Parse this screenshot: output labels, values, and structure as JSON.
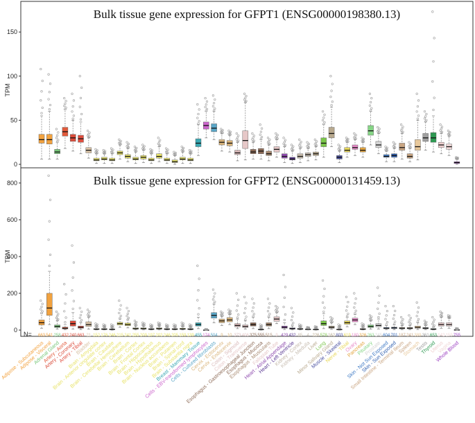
{
  "chart_data": [
    {
      "type": "box",
      "title": "Bulk tissue gene expression for GFPT1 (ENSG00000198380.13)",
      "ylabel": "TPM",
      "ylim": [
        0,
        180
      ],
      "yticks": [
        0,
        50,
        100,
        150
      ],
      "medians": [
        28,
        28,
        14,
        37,
        30,
        29,
        16,
        5,
        6,
        5,
        13,
        9,
        6,
        8,
        5,
        9,
        5,
        3,
        6,
        5,
        24,
        44,
        41,
        25,
        24,
        13,
        27,
        14,
        15,
        12,
        17,
        9,
        6,
        9,
        11,
        12,
        24,
        35,
        8,
        16,
        19,
        16,
        38,
        22,
        9,
        10,
        19,
        9,
        20,
        30,
        30,
        22,
        20,
        2
      ],
      "q1": [
        24,
        23,
        12,
        32,
        26,
        25,
        13,
        4,
        5,
        4,
        11,
        7,
        5,
        6,
        4,
        7,
        4,
        2,
        5,
        4,
        20,
        40,
        37,
        22,
        21,
        11,
        18,
        12,
        12,
        10,
        14,
        7,
        5,
        7,
        9,
        10,
        20,
        30,
        6,
        14,
        17,
        14,
        33,
        19,
        8,
        8,
        16,
        7,
        16,
        26,
        25,
        19,
        17,
        1
      ],
      "q3": [
        34,
        34,
        17,
        42,
        34,
        33,
        19,
        7,
        8,
        7,
        15,
        11,
        8,
        10,
        7,
        12,
        7,
        5,
        8,
        7,
        29,
        48,
        46,
        28,
        27,
        16,
        38,
        17,
        18,
        15,
        20,
        12,
        8,
        12,
        13,
        14,
        30,
        42,
        10,
        19,
        22,
        19,
        44,
        26,
        11,
        12,
        24,
        12,
        28,
        35,
        36,
        25,
        23,
        3
      ],
      "wlo": [
        6,
        6,
        6,
        18,
        15,
        12,
        7,
        1,
        1,
        1,
        6,
        3,
        1,
        2,
        1,
        3,
        1,
        0,
        1,
        1,
        10,
        30,
        28,
        15,
        14,
        4,
        5,
        6,
        6,
        4,
        8,
        2,
        1,
        2,
        4,
        5,
        8,
        20,
        2,
        8,
        10,
        8,
        22,
        12,
        3,
        3,
        6,
        3,
        5,
        16,
        14,
        12,
        10,
        0
      ],
      "whi": [
        55,
        60,
        25,
        62,
        50,
        48,
        30,
        12,
        12,
        12,
        22,
        18,
        14,
        16,
        12,
        20,
        12,
        10,
        14,
        12,
        45,
        60,
        60,
        35,
        33,
        25,
        70,
        25,
        28,
        22,
        28,
        20,
        15,
        18,
        18,
        20,
        45,
        65,
        15,
        25,
        28,
        25,
        60,
        35,
        15,
        18,
        35,
        18,
        50,
        48,
        55,
        35,
        32,
        6
      ],
      "outlier_max": [
        108,
        102,
        40,
        75,
        80,
        100,
        38,
        17,
        16,
        18,
        28,
        25,
        20,
        22,
        17,
        30,
        18,
        14,
        20,
        16,
        68,
        75,
        78,
        40,
        38,
        35,
        80,
        35,
        45,
        30,
        35,
        30,
        22,
        28,
        25,
        28,
        60,
        100,
        22,
        30,
        35,
        30,
        80,
        42,
        20,
        25,
        45,
        25,
        80,
        60,
        173,
        45,
        38,
        8
      ],
      "colors": [
        "#F2A23F",
        "#F2A23F",
        "#78C77A",
        "#E25A3B",
        "#D94B3A",
        "#E04E3E",
        "#D9C3A6",
        "#E8E36A",
        "#E8E36A",
        "#E8E36A",
        "#E8E36A",
        "#E8E36A",
        "#E8E36A",
        "#E8E36A",
        "#E8E36A",
        "#E8E36A",
        "#E8E36A",
        "#E8E36A",
        "#E8E36A",
        "#E8E36A",
        "#39A8B3",
        "#CC66CC",
        "#5AA6C7",
        "#D9B47A",
        "#D9B47A",
        "#D9B9B9",
        "#E6C8C8",
        "#8C6A56",
        "#8C6A56",
        "#A88A70",
        "#E6C8C8",
        "#8E4BAE",
        "#5B3A93",
        "#C4B8A8",
        "#C8BEB2",
        "#B8A98E",
        "#7CC64B",
        "#B8A98E",
        "#4A50A0",
        "#E8D85A",
        "#E889C8",
        "#E3A43E",
        "#86D686",
        "#D5D5D5",
        "#3C78C4",
        "#3060B0",
        "#C9A582",
        "#C9A582",
        "#E8C89A",
        "#A0A0A0",
        "#2E9A52",
        "#F0D0D0",
        "#F0D8D8",
        "#9B3FC0"
      ]
    },
    {
      "type": "box",
      "title": "Bulk tissue gene expression for GFPT2 (ENSG00000131459.13)",
      "ylabel": "TPM",
      "ylim": [
        0,
        860
      ],
      "yticks": [
        0,
        200,
        400,
        600,
        800
      ],
      "n_prefix": "N=",
      "counts": [
        "663",
        "541",
        "258",
        "432",
        "240",
        "663",
        "21",
        "152",
        "176",
        "246",
        "215",
        "241",
        "255",
        "209",
        "197",
        "202",
        "246",
        "205",
        "159",
        "139",
        "455",
        "174",
        "504",
        "9",
        "10",
        "373",
        "406",
        "375",
        "555",
        "515",
        "9",
        "429",
        "432",
        "85",
        "4",
        "226",
        "578",
        "162",
        "803",
        "619",
        "180",
        "326",
        "263",
        "245",
        "604",
        "701",
        "187",
        "241",
        "389",
        "361",
        "653",
        "142",
        "159",
        "755"
      ],
      "tissues": [
        "Adipose - Subcutaneous",
        "Adipose - Visceral",
        "Adrenal Gland",
        "Artery - Aorta",
        "Artery - Coronary",
        "Artery - Tibial",
        "Bladder",
        "Brain - Amygdala",
        "Brain - Anterior cingulate cortex",
        "Brain - Caudate",
        "Brain - Cerebellar Hemisphere",
        "Brain - Cerebellum",
        "Brain - Cortex",
        "Brain - Frontal Cortex",
        "Brain - Hippocampus",
        "Brain - Hypothalamus",
        "Brain - Nucleus accumbens",
        "Brain - Putamen",
        "Brain - Spinal cord",
        "Brain - Substantia nigra",
        "Breast - Mammary Tissue",
        "Cells - EBV-transformed lymphocytes",
        "Cells - Cultured fibroblasts",
        "Cervix - Ectocervix",
        "Cervix - Endocervix",
        "Colon - Sigmoid",
        "Colon - Transverse",
        "Esophagus - Gastroesophageal Junction",
        "Esophagus - Mucosa",
        "Esophagus - Muscularis",
        "Fallopian Tube",
        "Heart - Atrial Appendage",
        "Heart - Left Ventricle",
        "Kidney - Cortex",
        "Kidney - Medulla",
        "Liver",
        "Lung",
        "Minor Salivary Gland",
        "Muscle - Skeletal",
        "Nerve - Tibial",
        "Ovary",
        "Pancreas",
        "Pituitary",
        "Prostate",
        "Skin - Not Sun Exposed",
        "Skin - Sun Exposed",
        "Small Intestine - Terminal Ileum",
        "Spleen",
        "Stomach",
        "Testis",
        "Thyroid",
        "Uterus",
        "Vagina",
        "Whole Blood"
      ],
      "medians": [
        40,
        120,
        20,
        10,
        35,
        15,
        30,
        5,
        5,
        4,
        35,
        30,
        8,
        8,
        5,
        8,
        5,
        5,
        6,
        5,
        30,
        0,
        80,
        50,
        55,
        25,
        20,
        30,
        3,
        30,
        60,
        15,
        8,
        6,
        4,
        3,
        35,
        15,
        3,
        40,
        55,
        5,
        20,
        25,
        10,
        12,
        10,
        10,
        15,
        10,
        5,
        30,
        30,
        1
      ],
      "q1": [
        28,
        80,
        14,
        6,
        22,
        10,
        20,
        3,
        3,
        2,
        28,
        24,
        5,
        5,
        3,
        5,
        3,
        3,
        4,
        3,
        22,
        0,
        65,
        40,
        45,
        18,
        14,
        22,
        2,
        22,
        48,
        10,
        5,
        4,
        3,
        2,
        25,
        10,
        2,
        32,
        45,
        3,
        14,
        18,
        7,
        8,
        7,
        7,
        10,
        7,
        3,
        22,
        22,
        0
      ],
      "q3": [
        55,
        200,
        28,
        16,
        50,
        22,
        45,
        8,
        8,
        6,
        42,
        38,
        12,
        12,
        8,
        12,
        8,
        8,
        10,
        8,
        40,
        1,
        95,
        60,
        68,
        35,
        28,
        40,
        5,
        40,
        72,
        22,
        12,
        9,
        6,
        5,
        50,
        22,
        5,
        50,
        65,
        8,
        28,
        35,
        14,
        16,
        14,
        14,
        22,
        14,
        8,
        40,
        40,
        2
      ],
      "wlo": [
        10,
        30,
        5,
        2,
        5,
        3,
        5,
        1,
        1,
        0,
        15,
        12,
        1,
        1,
        1,
        1,
        1,
        1,
        1,
        1,
        8,
        0,
        40,
        25,
        30,
        8,
        5,
        8,
        0,
        8,
        35,
        3,
        1,
        1,
        1,
        0,
        8,
        4,
        0,
        18,
        30,
        1,
        5,
        6,
        2,
        2,
        2,
        2,
        3,
        2,
        1,
        10,
        10,
        0
      ],
      "whi": [
        90,
        320,
        50,
        30,
        95,
        40,
        70,
        15,
        15,
        12,
        60,
        55,
        22,
        22,
        15,
        22,
        15,
        15,
        18,
        15,
        70,
        2,
        140,
        75,
        85,
        60,
        50,
        70,
        9,
        70,
        95,
        40,
        22,
        15,
        10,
        10,
        90,
        40,
        9,
        70,
        85,
        15,
        50,
        60,
        25,
        28,
        25,
        25,
        40,
        25,
        15,
        70,
        65,
        4
      ],
      "outlier_max": [
        160,
        840,
        100,
        250,
        460,
        120,
        110,
        35,
        30,
        30,
        160,
        120,
        50,
        40,
        30,
        40,
        30,
        30,
        40,
        30,
        350,
        5,
        220,
        100,
        110,
        200,
        180,
        170,
        30,
        170,
        130,
        300,
        120,
        30,
        15,
        20,
        270,
        70,
        30,
        180,
        200,
        35,
        80,
        230,
        130,
        130,
        70,
        80,
        150,
        50,
        70,
        100,
        80,
        10
      ],
      "colors": [
        "#F2A23F",
        "#F2A23F",
        "#78C77A",
        "#E25A3B",
        "#D94B3A",
        "#E04E3E",
        "#D9C3A6",
        "#E8E36A",
        "#E8E36A",
        "#E8E36A",
        "#E8E36A",
        "#E8E36A",
        "#E8E36A",
        "#E8E36A",
        "#E8E36A",
        "#E8E36A",
        "#E8E36A",
        "#E8E36A",
        "#E8E36A",
        "#E8E36A",
        "#39A8B3",
        "#CC66CC",
        "#5AA6C7",
        "#D9B47A",
        "#D9B47A",
        "#D9B9B9",
        "#E6C8C8",
        "#8C6A56",
        "#8C6A56",
        "#A88A70",
        "#E6C8C8",
        "#8E4BAE",
        "#5B3A93",
        "#C4B8A8",
        "#C8BEB2",
        "#B8A98E",
        "#7CC64B",
        "#B8A98E",
        "#4A50A0",
        "#E8D85A",
        "#E889C8",
        "#E3A43E",
        "#86D686",
        "#D5D5D5",
        "#3C78C4",
        "#3060B0",
        "#C9A582",
        "#C9A582",
        "#E8C89A",
        "#A0A0A0",
        "#2E9A52",
        "#F0D0D0",
        "#F0D8D8",
        "#9B3FC0"
      ]
    }
  ]
}
